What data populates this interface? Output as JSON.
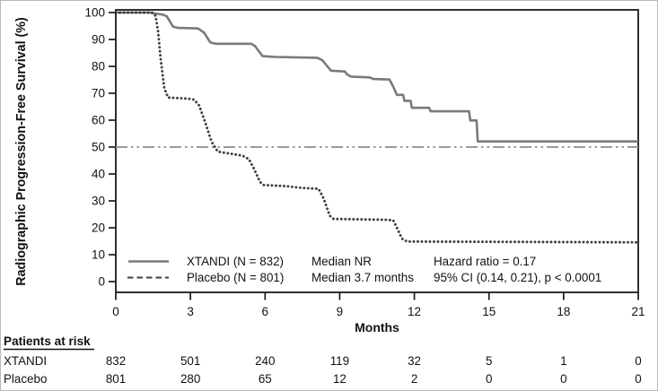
{
  "figure": {
    "ylabel": "Radiographic Progression-Free Survival (%)",
    "xlabel": "Months"
  },
  "legend": {
    "entries": [
      {
        "label": "XTANDI  (N = 832)",
        "median": "Median NR"
      },
      {
        "label": "Placebo  (N = 801)",
        "median": "Median 3.7 months"
      }
    ],
    "stats_line1": "Hazard ratio = 0.17",
    "stats_line2": "95% CI (0.14, 0.21), p < 0.0001"
  },
  "risk_table": {
    "header": "Patients at risk",
    "rows": [
      {
        "label": "XTANDI",
        "values": [
          "832",
          "501",
          "240",
          "119",
          "32",
          "5",
          "1",
          "0"
        ]
      },
      {
        "label": "Placebo",
        "values": [
          "801",
          "280",
          "65",
          "12",
          "2",
          "0",
          "0",
          "0"
        ]
      }
    ]
  },
  "chart_data": {
    "type": "line",
    "subtype": "kaplan-meier-step",
    "title": "",
    "xlabel": "Months",
    "ylabel": "Radiographic Progression-Free Survival (%)",
    "x_ticks": [
      0,
      3,
      6,
      9,
      12,
      15,
      18,
      21
    ],
    "y_ticks": [
      100,
      90,
      80,
      70,
      60,
      50,
      40,
      30,
      20,
      10,
      0
    ],
    "xlim": [
      0,
      21
    ],
    "ylim": [
      0,
      100
    ],
    "grid": false,
    "legend_position": "lower-left-inside",
    "reference_line_y": 50,
    "colors": {
      "xtandi_line": "#7a7a7a",
      "placebo_line": "#3f3f3f",
      "reference_line": "#9a9a9a",
      "axis": "#1a1a1a"
    },
    "series": [
      {
        "name": "XTANDI",
        "n": 832,
        "median": "NR",
        "line_style": "solid",
        "points": [
          [
            0,
            100
          ],
          [
            1.35,
            100
          ],
          [
            1.9,
            99.2
          ],
          [
            2.05,
            98.6
          ],
          [
            2.3,
            94.8
          ],
          [
            2.5,
            94.3
          ],
          [
            3.3,
            94.1
          ],
          [
            3.55,
            92.5
          ],
          [
            3.8,
            88.9
          ],
          [
            4.0,
            88.4
          ],
          [
            5.45,
            88.4
          ],
          [
            5.6,
            87.5
          ],
          [
            5.9,
            83.8
          ],
          [
            6.4,
            83.5
          ],
          [
            8.1,
            83.2
          ],
          [
            8.3,
            82.3
          ],
          [
            8.65,
            78.4
          ],
          [
            9.2,
            78.1
          ],
          [
            9.3,
            77.0
          ],
          [
            9.45,
            76.2
          ],
          [
            10.2,
            75.9
          ],
          [
            10.35,
            75.3
          ],
          [
            11.0,
            75.1
          ],
          [
            11.15,
            72.5
          ],
          [
            11.3,
            69.4
          ],
          [
            11.55,
            69.4
          ],
          [
            11.6,
            67.2
          ],
          [
            11.85,
            67.2
          ],
          [
            11.9,
            64.6
          ],
          [
            12.6,
            64.6
          ],
          [
            12.65,
            63.3
          ],
          [
            14.2,
            63.3
          ],
          [
            14.25,
            59.9
          ],
          [
            14.5,
            59.9
          ],
          [
            14.55,
            52.1
          ],
          [
            21,
            52.1
          ]
        ]
      },
      {
        "name": "Placebo",
        "n": 801,
        "median": "3.7 months",
        "line_style": "dotted",
        "points": [
          [
            0,
            100
          ],
          [
            1.45,
            100
          ],
          [
            1.6,
            98.8
          ],
          [
            1.7,
            93
          ],
          [
            1.8,
            83
          ],
          [
            1.95,
            72
          ],
          [
            2.1,
            68.4
          ],
          [
            2.9,
            68.0
          ],
          [
            3.15,
            67.6
          ],
          [
            3.35,
            65.5
          ],
          [
            3.6,
            59
          ],
          [
            3.85,
            52
          ],
          [
            4.1,
            48.3
          ],
          [
            4.5,
            47.7
          ],
          [
            5.1,
            46.8
          ],
          [
            5.35,
            45.5
          ],
          [
            5.55,
            42
          ],
          [
            5.8,
            37
          ],
          [
            5.95,
            35.9
          ],
          [
            6.8,
            35.5
          ],
          [
            7.5,
            34.8
          ],
          [
            8.15,
            34.5
          ],
          [
            8.35,
            31
          ],
          [
            8.6,
            24.5
          ],
          [
            8.75,
            23.3
          ],
          [
            10.8,
            23.0
          ],
          [
            11.15,
            22.8
          ],
          [
            11.3,
            20
          ],
          [
            11.5,
            16
          ],
          [
            11.7,
            14.9
          ],
          [
            21,
            14.6
          ]
        ]
      }
    ],
    "annotations": {
      "hazard_ratio": "Hazard ratio = 0.17",
      "confidence_interval": "95% CI (0.14, 0.21), p < 0.0001"
    }
  }
}
